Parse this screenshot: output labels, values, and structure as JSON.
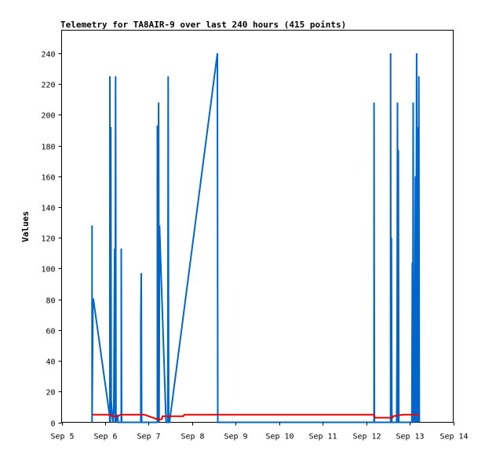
{
  "chart_data": {
    "type": "line",
    "title": "Telemetry for TA8AIR-9 over last 240 hours (415 points)",
    "xlabel": "",
    "ylabel": "Values",
    "ylim": [
      0,
      255
    ],
    "xlim": [
      0,
      9
    ],
    "x_unit": "days since Sep 5",
    "x_tick_values": [
      0,
      1,
      2,
      3,
      4,
      5,
      6,
      7,
      8,
      9
    ],
    "x_tick_labels": [
      "Sep 5",
      "Sep 6",
      "Sep 7",
      "Sep 8",
      "Sep 9",
      "Sep 10",
      "Sep 11",
      "Sep 12",
      "Sep 13",
      "Sep 14"
    ],
    "y_tick_values": [
      0,
      20,
      40,
      60,
      80,
      100,
      120,
      140,
      160,
      180,
      200,
      220,
      240
    ],
    "y_tick_labels": [
      "0",
      "20",
      "40",
      "60",
      "80",
      "100",
      "120",
      "140",
      "160",
      "180",
      "200",
      "220",
      "240"
    ],
    "grid": false,
    "legend": "none",
    "series": [
      {
        "color": "#0066cc",
        "points": [
          [
            0.7,
            0
          ],
          [
            0.7,
            128
          ],
          [
            0.7,
            0
          ],
          [
            0.71,
            40
          ],
          [
            0.72,
            80
          ],
          [
            0.73,
            80
          ],
          [
            1.1,
            5
          ],
          [
            1.11,
            0
          ],
          [
            1.11,
            225
          ],
          [
            1.12,
            0
          ],
          [
            1.13,
            192
          ],
          [
            1.14,
            15
          ],
          [
            1.16,
            5
          ],
          [
            1.18,
            0
          ],
          [
            1.2,
            10
          ],
          [
            1.22,
            113
          ],
          [
            1.23,
            0
          ],
          [
            1.24,
            225
          ],
          [
            1.25,
            0
          ],
          [
            1.28,
            5
          ],
          [
            1.3,
            0
          ],
          [
            1.37,
            0
          ],
          [
            1.37,
            113
          ],
          [
            1.38,
            0
          ],
          [
            1.82,
            0
          ],
          [
            1.82,
            65
          ],
          [
            1.83,
            97
          ],
          [
            1.84,
            0
          ],
          [
            2.2,
            0
          ],
          [
            2.2,
            193
          ],
          [
            2.21,
            0
          ],
          [
            2.23,
            208
          ],
          [
            2.24,
            0
          ],
          [
            2.25,
            128
          ],
          [
            2.27,
            110
          ],
          [
            2.4,
            0
          ],
          [
            2.44,
            0
          ],
          [
            2.45,
            225
          ],
          [
            2.46,
            0
          ],
          [
            2.48,
            0
          ],
          [
            3.58,
            240
          ],
          [
            3.59,
            0
          ],
          [
            7.18,
            0
          ],
          [
            7.18,
            208
          ],
          [
            7.19,
            0
          ],
          [
            7.56,
            0
          ],
          [
            7.56,
            240
          ],
          [
            7.57,
            0
          ],
          [
            7.58,
            120
          ],
          [
            7.59,
            0
          ],
          [
            7.7,
            0
          ],
          [
            7.71,
            64
          ],
          [
            7.72,
            208
          ],
          [
            7.73,
            0
          ],
          [
            7.74,
            177
          ],
          [
            7.75,
            0
          ],
          [
            8.05,
            0
          ],
          [
            8.06,
            104
          ],
          [
            8.07,
            0
          ],
          [
            8.08,
            208
          ],
          [
            8.09,
            0
          ],
          [
            8.1,
            32
          ],
          [
            8.11,
            0
          ],
          [
            8.13,
            160
          ],
          [
            8.14,
            0
          ],
          [
            8.16,
            240
          ],
          [
            8.17,
            0
          ],
          [
            8.18,
            192
          ],
          [
            8.19,
            0
          ],
          [
            8.21,
            225
          ],
          [
            8.22,
            0
          ]
        ]
      },
      {
        "color": "#ee0000",
        "points": [
          [
            0.7,
            5
          ],
          [
            1.14,
            5
          ],
          [
            1.16,
            4
          ],
          [
            1.3,
            4
          ],
          [
            1.35,
            5
          ],
          [
            1.9,
            5
          ],
          [
            2.2,
            2
          ],
          [
            2.3,
            2
          ],
          [
            2.32,
            4
          ],
          [
            2.8,
            4
          ],
          [
            2.82,
            5
          ],
          [
            7.18,
            5
          ],
          [
            7.2,
            3
          ],
          [
            7.6,
            3
          ],
          [
            7.62,
            4
          ],
          [
            7.85,
            5
          ],
          [
            8.22,
            5
          ]
        ]
      }
    ]
  }
}
